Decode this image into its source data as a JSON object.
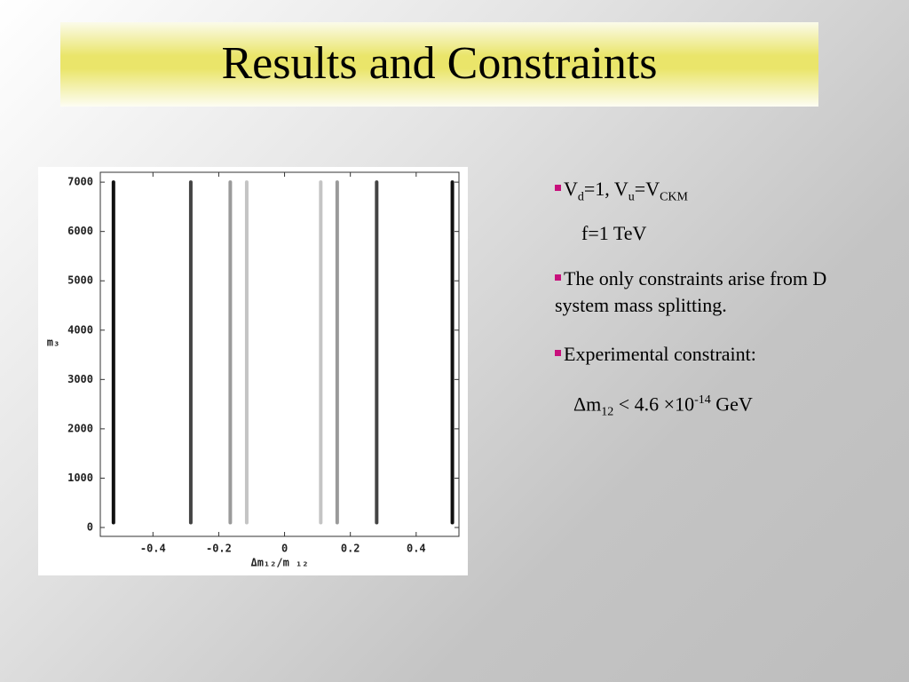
{
  "title": "Results and Constraints",
  "bullets": [
    {
      "parts": [
        "V",
        "d",
        "=1, V",
        "u",
        "=V",
        "CKM"
      ],
      "detail": "f=1 TeV"
    },
    {
      "text": "The only constraints arise from D system mass splitting."
    },
    {
      "text": "Experimental constraint:",
      "detail_parts": [
        "Δm",
        "12",
        " < 4.6 ×10",
        "-14",
        " GeV"
      ]
    }
  ],
  "chart_data": {
    "type": "line",
    "xlabel": "Δm₁₂/m ₁₂",
    "ylabel": "m₃",
    "xlim": [
      -0.56,
      0.53
    ],
    "ylim": [
      -180,
      7200
    ],
    "xticks": [
      -0.4,
      -0.2,
      0,
      0.2,
      0.4
    ],
    "yticks": [
      0,
      1000,
      2000,
      3000,
      4000,
      5000,
      6000,
      7000
    ],
    "series": [
      {
        "color": "#111111",
        "x": [
          -0.52,
          -0.52
        ],
        "values": [
          100,
          7000
        ]
      },
      {
        "color": "#444444",
        "x": [
          -0.285,
          -0.285
        ],
        "values": [
          100,
          7000
        ]
      },
      {
        "color": "#9a9a9a",
        "x": [
          -0.165,
          -0.165
        ],
        "values": [
          100,
          7000
        ]
      },
      {
        "color": "#c4c4c4",
        "x": [
          -0.115,
          -0.115
        ],
        "values": [
          100,
          7000
        ]
      },
      {
        "color": "#c4c4c4",
        "x": [
          0.11,
          0.11
        ],
        "values": [
          100,
          7000
        ]
      },
      {
        "color": "#9a9a9a",
        "x": [
          0.16,
          0.16
        ],
        "values": [
          100,
          7000
        ]
      },
      {
        "color": "#444444",
        "x": [
          0.28,
          0.28
        ],
        "values": [
          100,
          7000
        ]
      },
      {
        "color": "#111111",
        "x": [
          0.51,
          0.51
        ],
        "values": [
          100,
          7000
        ]
      }
    ]
  }
}
